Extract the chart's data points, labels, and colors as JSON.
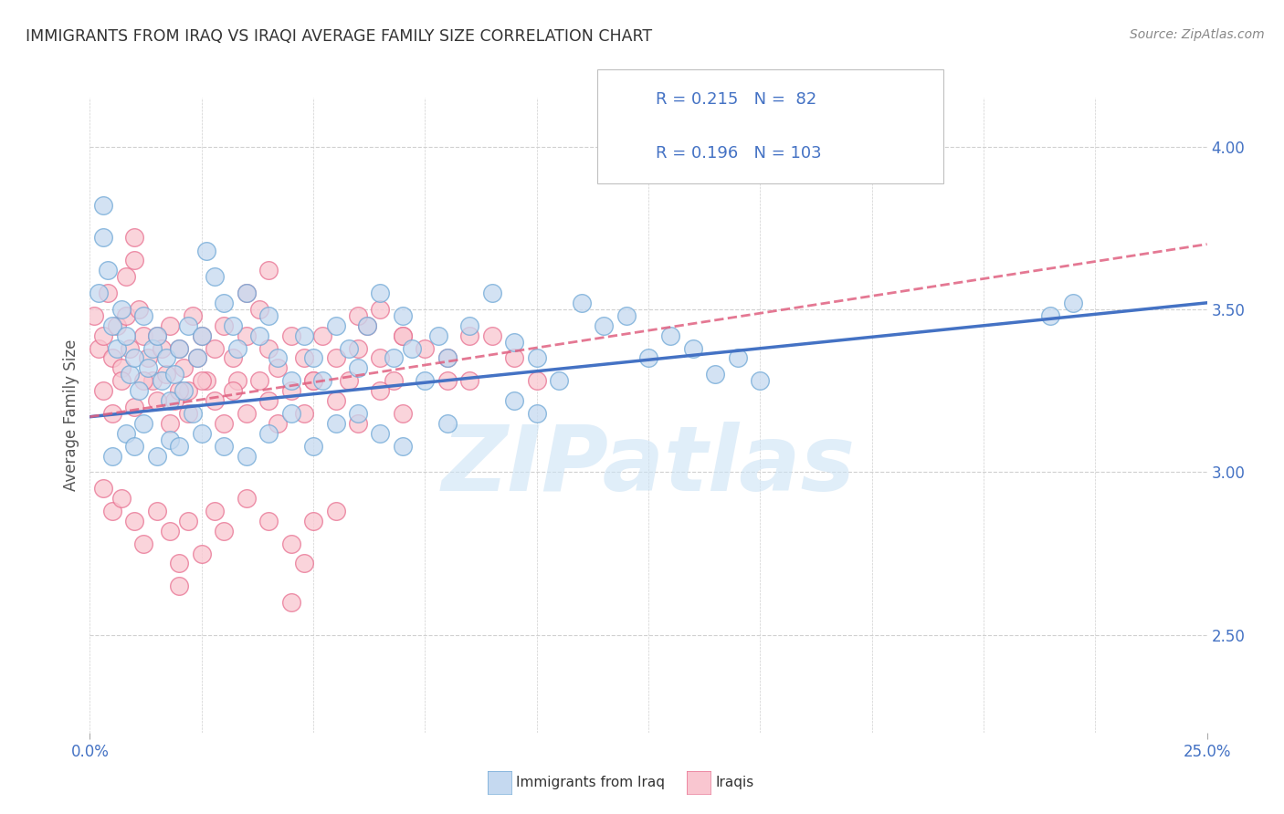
{
  "title": "IMMIGRANTS FROM IRAQ VS IRAQI AVERAGE FAMILY SIZE CORRELATION CHART",
  "source": "Source: ZipAtlas.com",
  "ylabel": "Average Family Size",
  "watermark": "ZIPatlas",
  "xlim": [
    0.0,
    0.25
  ],
  "ylim": [
    2.2,
    4.15
  ],
  "right_yticks": [
    2.5,
    3.0,
    3.5,
    4.0
  ],
  "series": [
    {
      "name": "Immigrants from Iraq",
      "R": 0.215,
      "N": 82,
      "face_color": "#c5d9f0",
      "edge_color": "#6fa8d6",
      "line_color": "#4472c4",
      "line_style": "solid",
      "legend_face": "#c5d9f0",
      "legend_edge": "#6fa8d6",
      "trend_x0": 0.0,
      "trend_y0": 3.17,
      "trend_x1": 0.25,
      "trend_y1": 3.52
    },
    {
      "name": "Iraqis",
      "R": 0.196,
      "N": 103,
      "face_color": "#f9c6d0",
      "edge_color": "#e87090",
      "line_color": "#e06080",
      "line_style": "dashed",
      "legend_face": "#f9c6d0",
      "legend_edge": "#e87090",
      "trend_x0": 0.0,
      "trend_y0": 3.17,
      "trend_x1": 0.25,
      "trend_y1": 3.7
    }
  ],
  "blue_scatter": [
    [
      0.002,
      3.55
    ],
    [
      0.003,
      3.72
    ],
    [
      0.004,
      3.62
    ],
    [
      0.005,
      3.45
    ],
    [
      0.006,
      3.38
    ],
    [
      0.007,
      3.5
    ],
    [
      0.008,
      3.42
    ],
    [
      0.009,
      3.3
    ],
    [
      0.01,
      3.35
    ],
    [
      0.011,
      3.25
    ],
    [
      0.012,
      3.48
    ],
    [
      0.013,
      3.32
    ],
    [
      0.014,
      3.38
    ],
    [
      0.015,
      3.42
    ],
    [
      0.016,
      3.28
    ],
    [
      0.017,
      3.35
    ],
    [
      0.018,
      3.22
    ],
    [
      0.019,
      3.3
    ],
    [
      0.02,
      3.38
    ],
    [
      0.021,
      3.25
    ],
    [
      0.022,
      3.45
    ],
    [
      0.023,
      3.18
    ],
    [
      0.024,
      3.35
    ],
    [
      0.025,
      3.42
    ],
    [
      0.003,
      3.82
    ],
    [
      0.026,
      3.68
    ],
    [
      0.028,
      3.6
    ],
    [
      0.03,
      3.52
    ],
    [
      0.032,
      3.45
    ],
    [
      0.033,
      3.38
    ],
    [
      0.035,
      3.55
    ],
    [
      0.038,
      3.42
    ],
    [
      0.04,
      3.48
    ],
    [
      0.042,
      3.35
    ],
    [
      0.045,
      3.28
    ],
    [
      0.048,
      3.42
    ],
    [
      0.05,
      3.35
    ],
    [
      0.052,
      3.28
    ],
    [
      0.055,
      3.45
    ],
    [
      0.058,
      3.38
    ],
    [
      0.06,
      3.32
    ],
    [
      0.062,
      3.45
    ],
    [
      0.065,
      3.55
    ],
    [
      0.068,
      3.35
    ],
    [
      0.07,
      3.48
    ],
    [
      0.072,
      3.38
    ],
    [
      0.075,
      3.28
    ],
    [
      0.078,
      3.42
    ],
    [
      0.08,
      3.35
    ],
    [
      0.085,
      3.45
    ],
    [
      0.09,
      3.55
    ],
    [
      0.095,
      3.4
    ],
    [
      0.1,
      3.35
    ],
    [
      0.105,
      3.28
    ],
    [
      0.11,
      3.52
    ],
    [
      0.115,
      3.45
    ],
    [
      0.12,
      3.48
    ],
    [
      0.125,
      3.35
    ],
    [
      0.13,
      3.42
    ],
    [
      0.135,
      3.38
    ],
    [
      0.14,
      3.3
    ],
    [
      0.145,
      3.35
    ],
    [
      0.15,
      3.28
    ],
    [
      0.22,
      3.52
    ],
    [
      0.215,
      3.48
    ],
    [
      0.005,
      3.05
    ],
    [
      0.008,
      3.12
    ],
    [
      0.01,
      3.08
    ],
    [
      0.012,
      3.15
    ],
    [
      0.015,
      3.05
    ],
    [
      0.018,
      3.1
    ],
    [
      0.02,
      3.08
    ],
    [
      0.025,
      3.12
    ],
    [
      0.03,
      3.08
    ],
    [
      0.035,
      3.05
    ],
    [
      0.04,
      3.12
    ],
    [
      0.045,
      3.18
    ],
    [
      0.05,
      3.08
    ],
    [
      0.055,
      3.15
    ],
    [
      0.06,
      3.18
    ],
    [
      0.065,
      3.12
    ],
    [
      0.07,
      3.08
    ],
    [
      0.08,
      3.15
    ],
    [
      0.095,
      3.22
    ],
    [
      0.1,
      3.18
    ]
  ],
  "pink_scatter": [
    [
      0.001,
      3.48
    ],
    [
      0.002,
      3.38
    ],
    [
      0.003,
      3.42
    ],
    [
      0.004,
      3.55
    ],
    [
      0.005,
      3.35
    ],
    [
      0.006,
      3.45
    ],
    [
      0.007,
      3.32
    ],
    [
      0.008,
      3.48
    ],
    [
      0.009,
      3.38
    ],
    [
      0.01,
      3.65
    ],
    [
      0.011,
      3.5
    ],
    [
      0.012,
      3.42
    ],
    [
      0.013,
      3.35
    ],
    [
      0.014,
      3.28
    ],
    [
      0.015,
      3.42
    ],
    [
      0.016,
      3.38
    ],
    [
      0.017,
      3.3
    ],
    [
      0.018,
      3.45
    ],
    [
      0.019,
      3.22
    ],
    [
      0.02,
      3.38
    ],
    [
      0.021,
      3.32
    ],
    [
      0.022,
      3.25
    ],
    [
      0.023,
      3.48
    ],
    [
      0.024,
      3.35
    ],
    [
      0.025,
      3.42
    ],
    [
      0.026,
      3.28
    ],
    [
      0.028,
      3.38
    ],
    [
      0.03,
      3.45
    ],
    [
      0.032,
      3.35
    ],
    [
      0.033,
      3.28
    ],
    [
      0.035,
      3.42
    ],
    [
      0.038,
      3.5
    ],
    [
      0.04,
      3.38
    ],
    [
      0.042,
      3.32
    ],
    [
      0.045,
      3.42
    ],
    [
      0.048,
      3.35
    ],
    [
      0.05,
      3.28
    ],
    [
      0.052,
      3.42
    ],
    [
      0.055,
      3.35
    ],
    [
      0.058,
      3.28
    ],
    [
      0.06,
      3.38
    ],
    [
      0.062,
      3.45
    ],
    [
      0.065,
      3.35
    ],
    [
      0.068,
      3.28
    ],
    [
      0.07,
      3.42
    ],
    [
      0.01,
      3.72
    ],
    [
      0.008,
      3.6
    ],
    [
      0.04,
      3.62
    ],
    [
      0.035,
      3.55
    ],
    [
      0.06,
      3.48
    ],
    [
      0.003,
      3.25
    ],
    [
      0.005,
      3.18
    ],
    [
      0.007,
      3.28
    ],
    [
      0.01,
      3.2
    ],
    [
      0.012,
      3.28
    ],
    [
      0.015,
      3.22
    ],
    [
      0.018,
      3.15
    ],
    [
      0.02,
      3.25
    ],
    [
      0.022,
      3.18
    ],
    [
      0.025,
      3.28
    ],
    [
      0.028,
      3.22
    ],
    [
      0.03,
      3.15
    ],
    [
      0.032,
      3.25
    ],
    [
      0.035,
      3.18
    ],
    [
      0.038,
      3.28
    ],
    [
      0.04,
      3.22
    ],
    [
      0.042,
      3.15
    ],
    [
      0.045,
      3.25
    ],
    [
      0.048,
      3.18
    ],
    [
      0.05,
      3.28
    ],
    [
      0.055,
      3.22
    ],
    [
      0.06,
      3.15
    ],
    [
      0.065,
      3.25
    ],
    [
      0.07,
      3.18
    ],
    [
      0.003,
      2.95
    ],
    [
      0.005,
      2.88
    ],
    [
      0.007,
      2.92
    ],
    [
      0.01,
      2.85
    ],
    [
      0.012,
      2.78
    ],
    [
      0.015,
      2.88
    ],
    [
      0.018,
      2.82
    ],
    [
      0.02,
      2.72
    ],
    [
      0.022,
      2.85
    ],
    [
      0.025,
      2.75
    ],
    [
      0.028,
      2.88
    ],
    [
      0.03,
      2.82
    ],
    [
      0.035,
      2.92
    ],
    [
      0.04,
      2.85
    ],
    [
      0.045,
      2.78
    ],
    [
      0.048,
      2.72
    ],
    [
      0.05,
      2.85
    ],
    [
      0.055,
      2.88
    ],
    [
      0.045,
      2.6
    ],
    [
      0.02,
      2.65
    ],
    [
      0.08,
      3.35
    ],
    [
      0.085,
      3.28
    ],
    [
      0.09,
      3.42
    ],
    [
      0.095,
      3.35
    ],
    [
      0.1,
      3.28
    ],
    [
      0.065,
      3.5
    ],
    [
      0.07,
      3.42
    ],
    [
      0.075,
      3.38
    ],
    [
      0.08,
      3.28
    ],
    [
      0.085,
      3.42
    ]
  ],
  "grid_color": "#d0d0d0",
  "background_color": "#ffffff",
  "title_color": "#333333",
  "source_color": "#888888",
  "axis_label_color": "#4472c4",
  "text_color": "#333333"
}
